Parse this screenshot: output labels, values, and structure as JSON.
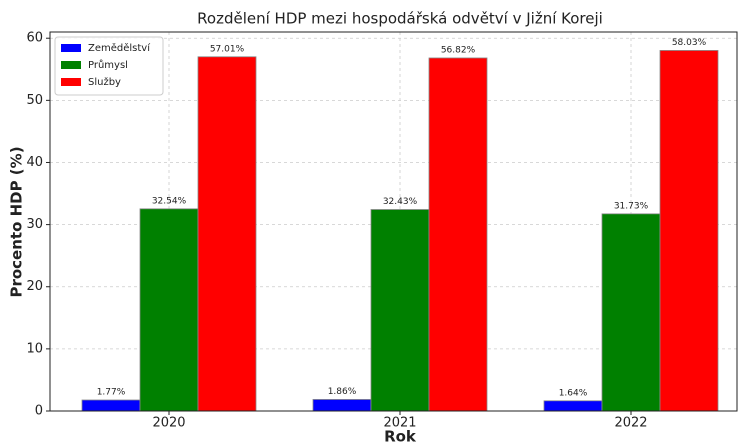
{
  "chart_data": {
    "type": "bar",
    "title": "Rozdělení HDP mezi hospodářská odvětví v Jižní Koreji",
    "x_label": "Rok",
    "y_label": "Procento HDP (%)",
    "categories": [
      "2020",
      "2021",
      "2022"
    ],
    "series": [
      {
        "name": "Zemědělství",
        "color": "#0000ff",
        "values": [
          1.77,
          1.86,
          1.64
        ],
        "value_labels": [
          "1.77%",
          "1.86%",
          "1.64%"
        ]
      },
      {
        "name": "Průmysl",
        "color": "#008000",
        "values": [
          32.54,
          32.43,
          31.73
        ],
        "value_labels": [
          "32.54%",
          "32.43%",
          "31.73%"
        ]
      },
      {
        "name": "Služby",
        "color": "#ff0000",
        "values": [
          57.01,
          56.82,
          58.03
        ],
        "value_labels": [
          "57.01%",
          "56.82%",
          "58.03%"
        ]
      }
    ],
    "ylim": [
      0,
      61
    ],
    "yticks": [
      0,
      10,
      20,
      30,
      40,
      50,
      60
    ],
    "grid": true,
    "legend": "upper left"
  }
}
